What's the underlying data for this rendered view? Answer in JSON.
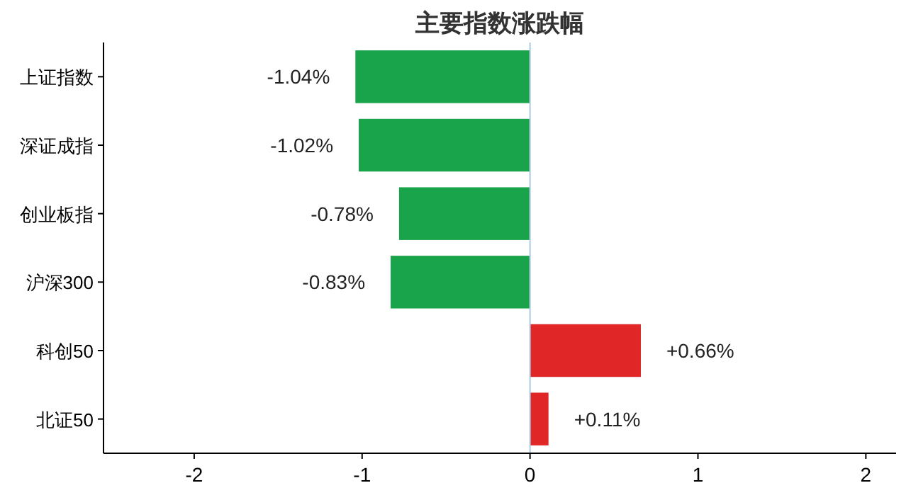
{
  "chart_data": {
    "type": "bar",
    "orientation": "horizontal",
    "title": "主要指数涨跌幅",
    "categories": [
      "上证指数",
      "深证成指",
      "创业板指",
      "沪深300",
      "科创50",
      "北证50"
    ],
    "values": [
      -1.04,
      -1.02,
      -0.78,
      -0.83,
      0.66,
      0.11
    ],
    "colors": [
      "#19a34a",
      "#19a34a",
      "#19a34a",
      "#19a34a",
      "#e02626",
      "#e02626"
    ],
    "value_labels": [
      "-1.04%",
      "-1.02%",
      "-0.78%",
      "-0.83%",
      "+0.66%",
      "+0.11%"
    ],
    "xlim": [
      -2.54,
      2.18
    ],
    "xticks": [
      -2,
      -1,
      0,
      1,
      2
    ],
    "ref_lines": [
      {
        "axis": "x",
        "value": 0,
        "color": "#a8cce0"
      }
    ]
  }
}
